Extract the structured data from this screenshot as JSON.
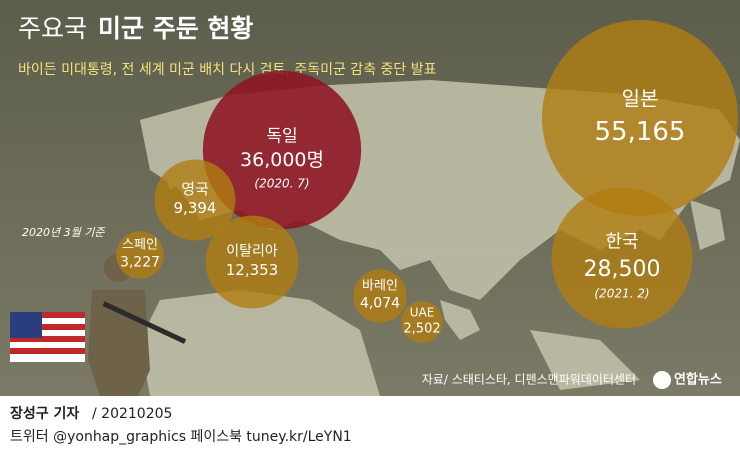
{
  "title": {
    "lead": "주요국",
    "main": "미군 주둔 현황"
  },
  "subtitle": "바이든 미대통령, 전 세계 미군 배치 다시 검토, 주독미군 감축 중단 발표",
  "note": "2020년 3월 기준",
  "chart_data": {
    "type": "bubble",
    "categories": [
      "독일",
      "일본",
      "한국",
      "영국",
      "이탈리아",
      "스페인",
      "바레인",
      "UAE"
    ],
    "values": [
      36000,
      55165,
      28500,
      9394,
      12353,
      3227,
      4074,
      2502
    ],
    "value_labels": [
      "36,000명",
      "55,165",
      "28,500",
      "9,394",
      "12,353",
      "3,227",
      "4,074",
      "2,502"
    ],
    "colors": [
      "#8e1422",
      "#b07d10",
      "#b07d10",
      "#b07d10",
      "#b07d10",
      "#b07d10",
      "#b07d10",
      "#b07d10"
    ],
    "annotations": [
      "(2020. 7)",
      "(2021. 2)"
    ]
  },
  "source": "자료/ 스태티스타, 디펜스맨파워데이터센터",
  "logo": "연합뉴스",
  "footer": {
    "author": "장성구 기자",
    "date": "/ 20210205",
    "sns": "트위터 @yonhap_graphics  페이스북 tuney.kr/LeYN1"
  }
}
